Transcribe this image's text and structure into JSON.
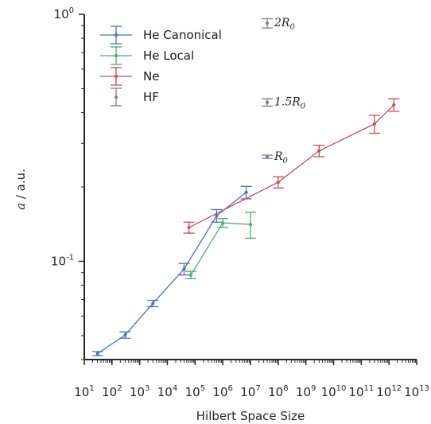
{
  "chart_data": {
    "type": "scatter",
    "xlabel": "Hilbert Space Size",
    "ylabel_var": "a",
    "ylabel_unit": " / a.u.",
    "xscale": "log",
    "yscale": "log",
    "xlim": [
      10,
      10000000000000.0
    ],
    "ylim": [
      0.04,
      1.0
    ],
    "x_tick_base": "10",
    "x_tick_exponents": [
      "1",
      "2",
      "3",
      "4",
      "5",
      "6",
      "7",
      "8",
      "9",
      "10",
      "11",
      "12",
      "13"
    ],
    "y_ticks": [
      {
        "value": 1.0,
        "base": "10",
        "exp": "0"
      },
      {
        "value": 0.1,
        "base": "10",
        "exp": "-1"
      }
    ],
    "legend_position": "upper-left",
    "series": [
      {
        "name": "He Canonical",
        "color": "#4c72b0",
        "connected": true,
        "points": [
          {
            "x": 30,
            "y": 0.0423,
            "err": 0.0008
          },
          {
            "x": 300,
            "y": 0.0503,
            "err": 0.0015
          },
          {
            "x": 3000,
            "y": 0.0675,
            "err": 0.002
          },
          {
            "x": 40000,
            "y": 0.093,
            "err": 0.005
          },
          {
            "x": 600000,
            "y": 0.153,
            "err": 0.009
          },
          {
            "x": 7000000,
            "y": 0.19,
            "err": 0.011
          }
        ]
      },
      {
        "name": "He Local",
        "color": "#55a868",
        "connected": true,
        "points": [
          {
            "x": 70000,
            "y": 0.088,
            "err": 0.003
          },
          {
            "x": 1000000,
            "y": 0.143,
            "err": 0.006
          },
          {
            "x": 10000000,
            "y": 0.141,
            "err": 0.017
          }
        ]
      },
      {
        "name": "Ne",
        "color": "#c44e52",
        "connected": true,
        "points": [
          {
            "x": 60000,
            "y": 0.137,
            "err": 0.007
          },
          {
            "x": 100000000,
            "y": 0.209,
            "err": 0.011
          },
          {
            "x": 3000000000,
            "y": 0.28,
            "err": 0.015
          },
          {
            "x": 300000000000,
            "y": 0.36,
            "err": 0.03
          },
          {
            "x": 1500000000000,
            "y": 0.43,
            "err": 0.025
          }
        ]
      },
      {
        "name": "HF",
        "color": "#8172b2",
        "connected": false,
        "points": [
          {
            "x": 40000000,
            "y": 0.265,
            "err": 0.004,
            "label_var": "R",
            "label_sub": "0",
            "label_prefix": ""
          },
          {
            "x": 40000000,
            "y": 0.44,
            "err": 0.015,
            "label_var": "R",
            "label_sub": "0",
            "label_prefix": "1.5"
          },
          {
            "x": 40000000,
            "y": 0.92,
            "err": 0.04,
            "label_var": "R",
            "label_sub": "0",
            "label_prefix": "2"
          }
        ]
      }
    ]
  }
}
